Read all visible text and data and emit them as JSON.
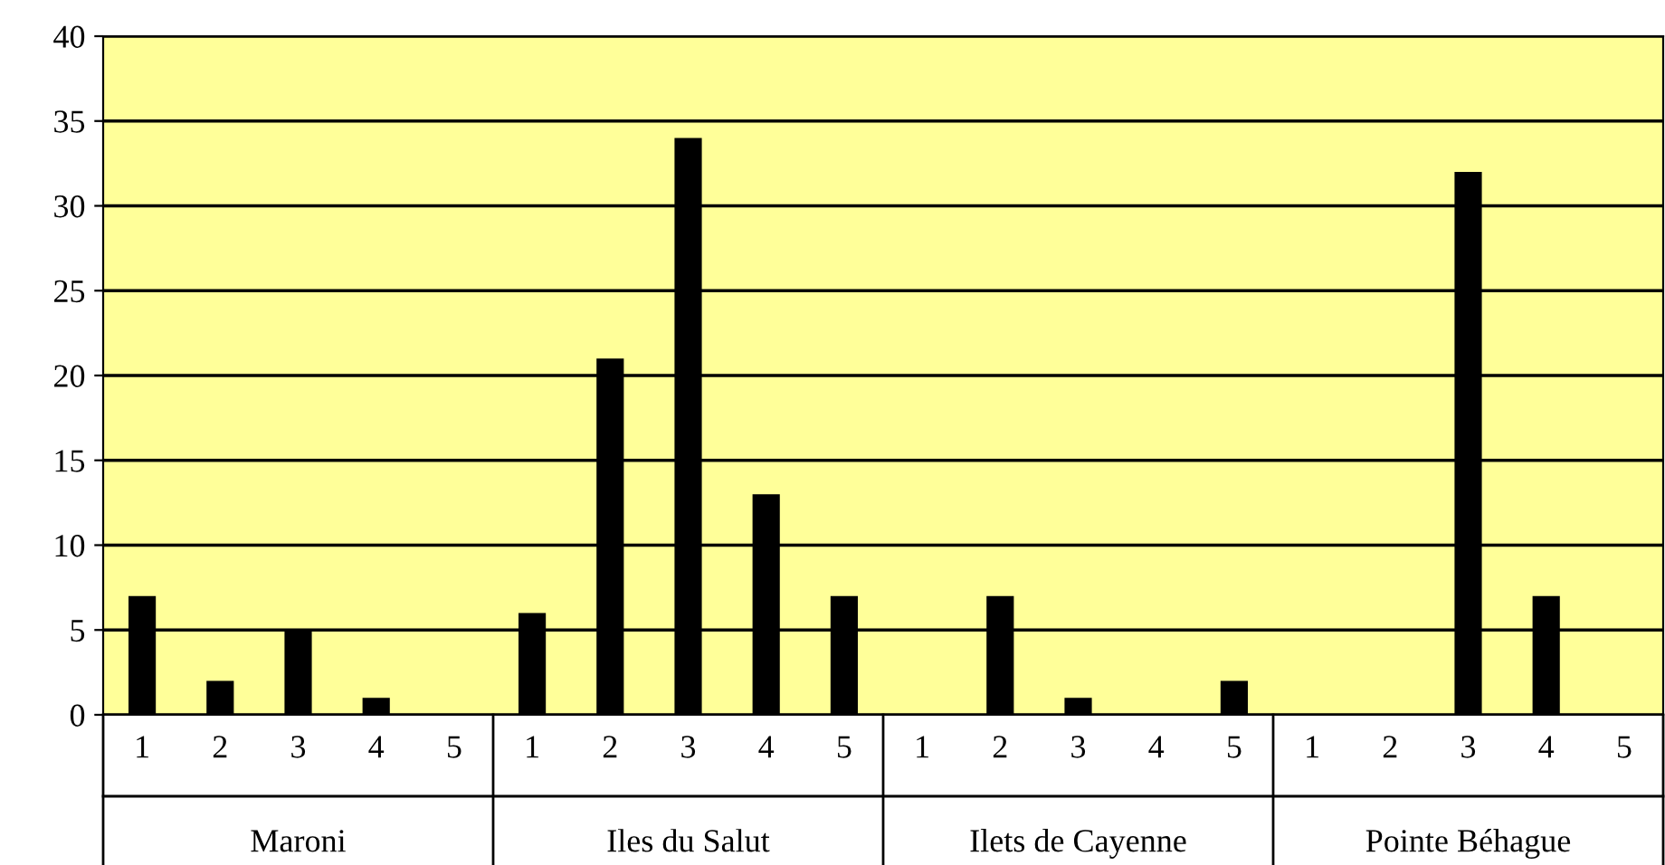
{
  "chart_data": {
    "type": "bar",
    "categories": [
      "1",
      "2",
      "3",
      "4",
      "5",
      "1",
      "2",
      "3",
      "4",
      "5",
      "1",
      "2",
      "3",
      "4",
      "5",
      "1",
      "2",
      "3",
      "4",
      "5"
    ],
    "series": [
      {
        "color": "#000000",
        "values": [
          7,
          2,
          5,
          1,
          0,
          6,
          21,
          34,
          13,
          7,
          0,
          7,
          1,
          0,
          2,
          0,
          0,
          32,
          7,
          0
        ]
      }
    ],
    "annotations": [
      "Maroni",
      "Iles du Salut",
      "Ilets de Cayenne",
      "Pointe Béhague"
    ],
    "ylim": [
      0,
      40
    ],
    "yticks": [
      0,
      5,
      10,
      15,
      20,
      25,
      30,
      35,
      40
    ],
    "grid": "y",
    "legend": false
  }
}
